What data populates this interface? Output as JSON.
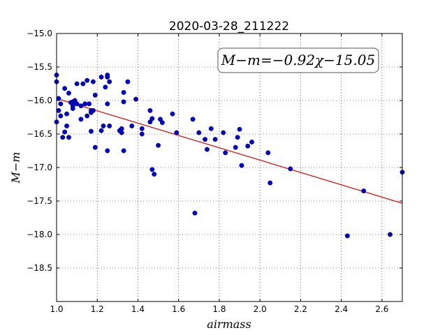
{
  "chart_data": {
    "type": "scatter",
    "title": "2020-03-28_211222",
    "xlabel": "airmass",
    "ylabel": "M−m",
    "xlim": [
      1.0,
      2.7
    ],
    "ylim": [
      -15.0,
      -19.0
    ],
    "y_inverted": true,
    "grid": true,
    "xticks": [
      "1.0",
      "1.2",
      "1.4",
      "1.6",
      "1.8",
      "2.0",
      "2.2",
      "2.4",
      "2.6"
    ],
    "yticks": [
      "−15.0",
      "−15.5",
      "−16.0",
      "−16.5",
      "−17.0",
      "−17.5",
      "−18.0",
      "−18.5"
    ],
    "xtick_values": [
      1.0,
      1.2,
      1.4,
      1.6,
      1.8,
      2.0,
      2.2,
      2.4,
      2.6
    ],
    "ytick_values": [
      -15.0,
      -15.5,
      -16.0,
      -16.5,
      -17.0,
      -17.5,
      -18.0,
      -18.5
    ],
    "annotation": "M−m=−0.92χ−15.05",
    "point_color": "#0000cc",
    "fit_color": "#dd0000",
    "fit": {
      "slope": -0.92,
      "intercept": -15.05,
      "x": [
        1.0,
        2.7
      ]
    },
    "series": [
      {
        "x": [
          1.0,
          1.0,
          1.0,
          1.01,
          1.01,
          1.02,
          1.02,
          1.03,
          1.04,
          1.04,
          1.05,
          1.05,
          1.06,
          1.06,
          1.07,
          1.08,
          1.08,
          1.08,
          1.09,
          1.09,
          1.1,
          1.1,
          1.12,
          1.12,
          1.13,
          1.14,
          1.15,
          1.15,
          1.16,
          1.17,
          1.17,
          1.17,
          1.18,
          1.18,
          1.19,
          1.19,
          1.22,
          1.22,
          1.23,
          1.24,
          1.25,
          1.25,
          1.25,
          1.25,
          1.26,
          1.26,
          1.31,
          1.32,
          1.32,
          1.33,
          1.33,
          1.33,
          1.35,
          1.37,
          1.39,
          1.42,
          1.42,
          1.46,
          1.46,
          1.47,
          1.47,
          1.48,
          1.5,
          1.51,
          1.52,
          1.57,
          1.59,
          1.67,
          1.68,
          1.7,
          1.73,
          1.74,
          1.76,
          1.78,
          1.82,
          1.83,
          1.88,
          1.89,
          1.9,
          1.91,
          1.94,
          1.96,
          2.04,
          2.05,
          2.15,
          2.43,
          2.51,
          2.64,
          2.7
        ],
        "y": [
          -15.62,
          -15.72,
          -16.32,
          -15.97,
          -16.15,
          -16.05,
          -16.23,
          -16.55,
          -15.82,
          -16.47,
          -16.38,
          -16.2,
          -15.89,
          -16.55,
          -16.03,
          -16.02,
          -16.08,
          -16.12,
          -16.0,
          -16.03,
          -15.75,
          -16.05,
          -16.28,
          -16.08,
          -15.75,
          -16.05,
          -15.7,
          -16.23,
          -16.05,
          -16.15,
          -16.18,
          -16.46,
          -16.15,
          -15.72,
          -15.92,
          -16.7,
          -15.65,
          -16.45,
          -16.38,
          -15.8,
          -15.65,
          -16.05,
          -15.62,
          -16.75,
          -15.72,
          -16.38,
          -16.45,
          -16.48,
          -16.42,
          -15.88,
          -16.02,
          -16.75,
          -15.72,
          -16.38,
          -15.98,
          -16.42,
          -16.5,
          -16.15,
          -16.32,
          -16.27,
          -17.03,
          -17.1,
          -16.67,
          -16.28,
          -16.33,
          -16.2,
          -16.48,
          -16.28,
          -17.68,
          -16.48,
          -16.58,
          -16.73,
          -16.42,
          -16.58,
          -16.48,
          -16.78,
          -16.7,
          -16.55,
          -16.43,
          -16.97,
          -16.68,
          -16.62,
          -16.78,
          -17.23,
          -17.02,
          -18.02,
          -17.35,
          -18.0,
          -17.07
        ]
      }
    ]
  }
}
